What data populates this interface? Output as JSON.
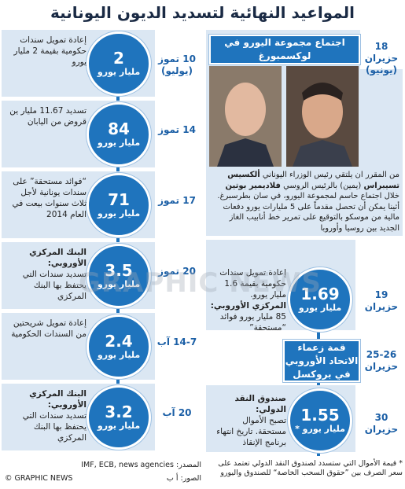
{
  "title": "المواعيد النهائية لتسديد الديون اليونانية",
  "schedule": [
    {
      "day": "10 تموز",
      "month_note": "(يوليو)",
      "amount": "2",
      "unit": "مليار يورو",
      "text": "إعادة تمويل سندات حكومية بقيمة 2 مليار يورو"
    },
    {
      "day": "14 تموز",
      "amount": "84",
      "unit": "مليار يورو",
      "text": "تسديد 11.67 مليار ين قروض من اليابان"
    },
    {
      "day": "17 تموز",
      "amount": "71",
      "unit": "مليار يورو",
      "text": "“فوائد مستحقة” على سندات يونانية لأجل ثلاث سنوات بيعت في العام 2014"
    },
    {
      "day": "20 تموز",
      "amount": "3.5",
      "unit": "مليار يورو",
      "lead": "البنك المركزي الأوروبي:",
      "text": "تسديد سندات التي يحتفظ بها البنك المركزي"
    },
    {
      "day": "14-7 آب",
      "amount": "2.4",
      "unit": "مليار يورو",
      "text": "إعادة تمويل شريحتين من السندات الحكومية"
    },
    {
      "day": "20 آب",
      "amount": "3.2",
      "unit": "مليار يورو",
      "lead": "البنك المركزي الأوروبي:",
      "text": "تسديد سندات التي يحتفظ بها البنك المركزي"
    }
  ],
  "euro_group": {
    "day": "18",
    "month": "حزيران",
    "month_note": "(يونيو)",
    "heading": "اجتماع مجموعة اليورو في لوكسمبورغ",
    "text_1": "من المقرر ان يلتقي رئيس الوزراء اليوناني",
    "name_1": "ألكسيس تسيبراس",
    "text_2": "(يمين) بالرئيس الروسي",
    "name_2": "فلاديمير بوتين",
    "text_3": "خلال اجتماع حاسم لمجموعة اليورو، في سان بطرسبرغ. أثينا يمكن أن تحصل مقدماً على 5 مليارات يورو دفعات مالية من موسكو بالتوقيع على تمرير خط أنابيب الغاز الجديد بين روسيا وأوروبا"
  },
  "june_19": {
    "day": "19",
    "month": "حزيران",
    "amount": "1.69",
    "unit": "مليار يورو",
    "text": "إعادة تمويل سندات حكومية بقيمة 1.6 مليار يورو.",
    "lead": "المركزي الأوروبي:",
    "text_2": "85 مليار يورو فوائد “مستحقة”"
  },
  "summit": {
    "day": "25-26",
    "month": "حزيران",
    "heading": "قمة زعماء الاتحاد الأوروبي في بروكسل"
  },
  "june_30": {
    "day": "30",
    "month": "حزيران",
    "amount": "1.55",
    "unit": "مليار يورو *",
    "lead": "صندوق النقد الدولي:",
    "text": "تصبح الأموال مستحقة. تاريخ انتهاء برنامج الإنقاذ"
  },
  "footnote": "* قيمة الأموال التي ستسدد لصندوق النقد الدولي تعتمد على سعر الصرف بين ”حقوق السحب الخاصة“ للصندوق واليورو",
  "source": "المصدر: IMF, ECB, news agencies",
  "photo_credit": "الصور: أ ب",
  "copyright": "© GRAPHIC NEWS",
  "watermark": "GRAPHIC NEWS"
}
